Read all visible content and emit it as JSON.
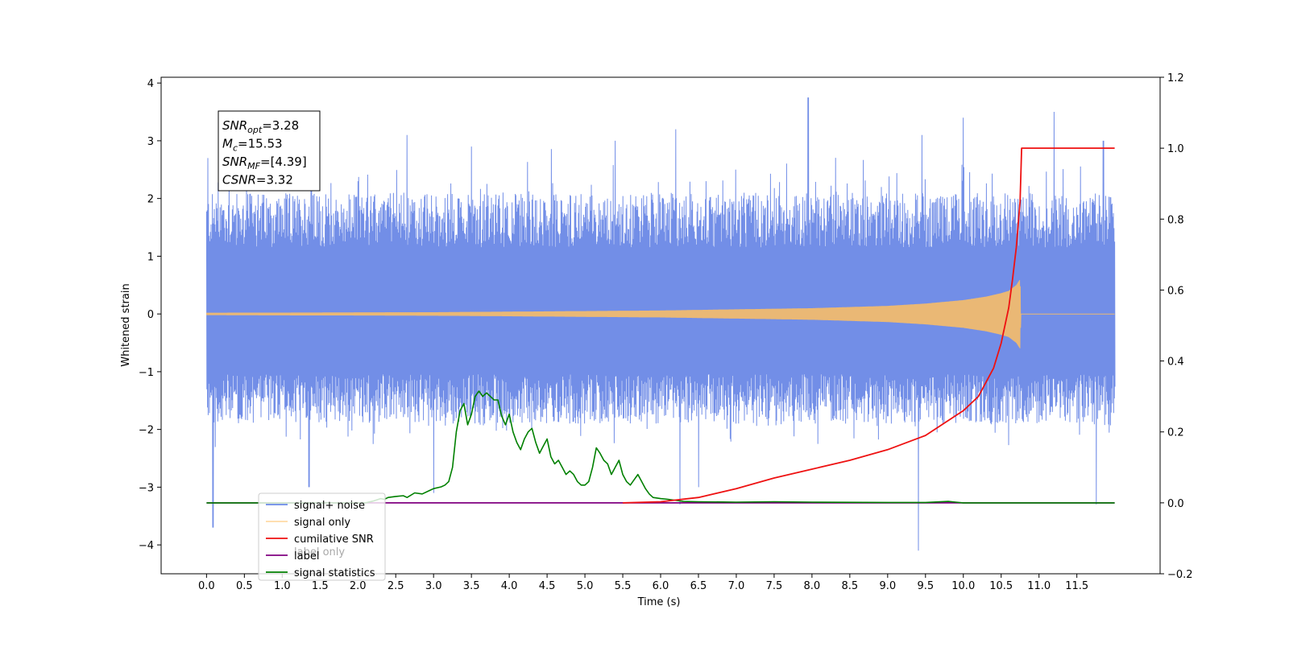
{
  "chart_data": {
    "type": "line",
    "xlabel": "Time (s)",
    "ylabel": "Whitened strain",
    "xlim": [
      -0.6,
      12.6
    ],
    "ylim": [
      -4.5,
      4.1
    ],
    "y2lim": [
      -0.2,
      1.2
    ],
    "x_ticks": [
      "0.0",
      "0.5",
      "1.0",
      "1.5",
      "2.0",
      "2.5",
      "3.0",
      "3.5",
      "4.0",
      "4.5",
      "5.0",
      "5.5",
      "6.0",
      "6.5",
      "7.0",
      "7.5",
      "8.0",
      "8.5",
      "9.0",
      "9.5",
      "10.0",
      "10.5",
      "11.0",
      "11.5"
    ],
    "y_ticks": [
      "4",
      "3",
      "2",
      "1",
      "0",
      "−1",
      "−2",
      "−3",
      "−4"
    ],
    "y2_ticks": [
      "1.2",
      "1.0",
      "0.8",
      "0.6",
      "0.4",
      "0.2",
      "0.0",
      "−0.2"
    ],
    "legend_position": "lower-left",
    "legend": [
      {
        "label": "signal+ noise",
        "color": "#6a88e6"
      },
      {
        "label": "signal only",
        "color": "#ffbf60"
      },
      {
        "label": "cumilative SNR",
        "color": "#ee1111"
      },
      {
        "label": "label",
        "color": "#800080"
      },
      {
        "label": "signal statistics",
        "color": "#008000"
      }
    ],
    "hidden_legend_text": "label only",
    "annotation": [
      {
        "main": "SNR",
        "sub": "opt",
        "rest": "=3.28"
      },
      {
        "main": "M",
        "sub": "c",
        "rest": "=15.53"
      },
      {
        "main": "SNR",
        "sub": "MF",
        "rest": "=[4.39]"
      },
      {
        "main": "CSNR",
        "sub": "",
        "rest": "=3.32"
      }
    ],
    "series": [
      {
        "name": "signal+ noise",
        "axis": "left",
        "color": "#6a88e6",
        "x_range": [
          0.0,
          12.0
        ],
        "band_lower": -1.9,
        "band_upper": 2.1,
        "spikes": [
          [
            0.02,
            2.7
          ],
          [
            0.08,
            -3.7
          ],
          [
            0.3,
            2.6
          ],
          [
            1.35,
            -3.0
          ],
          [
            2.65,
            3.1
          ],
          [
            3.0,
            -3.1
          ],
          [
            3.5,
            2.9
          ],
          [
            5.4,
            3.0
          ],
          [
            6.2,
            3.2
          ],
          [
            6.25,
            -3.3
          ],
          [
            6.5,
            -3.0
          ],
          [
            7.95,
            3.75
          ],
          [
            9.4,
            -4.1
          ],
          [
            9.45,
            3.1
          ],
          [
            10.0,
            3.4
          ],
          [
            11.2,
            3.5
          ],
          [
            11.75,
            -3.3
          ],
          [
            11.85,
            3.0
          ]
        ]
      },
      {
        "name": "signal only",
        "axis": "left",
        "color": "#ffbf60",
        "points": [
          [
            0,
            0.02
          ],
          [
            3.0,
            0.03
          ],
          [
            6.0,
            0.06
          ],
          [
            7.0,
            0.08
          ],
          [
            8.0,
            0.1
          ],
          [
            9.0,
            0.14
          ],
          [
            9.5,
            0.18
          ],
          [
            10.0,
            0.24
          ],
          [
            10.3,
            0.3
          ],
          [
            10.5,
            0.36
          ],
          [
            10.6,
            0.4
          ],
          [
            10.7,
            0.5
          ],
          [
            10.75,
            0.6
          ],
          [
            10.76,
            0.0
          ],
          [
            12.0,
            0.0
          ]
        ]
      },
      {
        "name": "cumilative SNR",
        "axis": "right",
        "color": "#ee1111",
        "points": [
          [
            5.5,
            0.0
          ],
          [
            6.0,
            0.003
          ],
          [
            6.5,
            0.015
          ],
          [
            7.0,
            0.04
          ],
          [
            7.5,
            0.07
          ],
          [
            8.0,
            0.095
          ],
          [
            8.5,
            0.12
          ],
          [
            9.0,
            0.15
          ],
          [
            9.5,
            0.19
          ],
          [
            10.0,
            0.26
          ],
          [
            10.2,
            0.3
          ],
          [
            10.4,
            0.38
          ],
          [
            10.5,
            0.45
          ],
          [
            10.6,
            0.55
          ],
          [
            10.65,
            0.63
          ],
          [
            10.7,
            0.72
          ],
          [
            10.75,
            0.85
          ],
          [
            10.77,
            1.0
          ],
          [
            12.0,
            1.0
          ]
        ]
      },
      {
        "name": "label",
        "axis": "right",
        "color": "#800080",
        "points": [
          [
            0.0,
            0.0
          ],
          [
            12.0,
            0.0
          ]
        ]
      },
      {
        "name": "signal statistics",
        "axis": "right",
        "color": "#008000",
        "points": [
          [
            0.0,
            0.0
          ],
          [
            2.0,
            0.0
          ],
          [
            2.1,
            0.0
          ],
          [
            2.2,
            0.005
          ],
          [
            2.3,
            0.012
          ],
          [
            2.35,
            0.01
          ],
          [
            2.4,
            0.015
          ],
          [
            2.5,
            0.018
          ],
          [
            2.6,
            0.02
          ],
          [
            2.65,
            0.015
          ],
          [
            2.75,
            0.028
          ],
          [
            2.85,
            0.025
          ],
          [
            2.95,
            0.035
          ],
          [
            3.0,
            0.04
          ],
          [
            3.1,
            0.045
          ],
          [
            3.15,
            0.05
          ],
          [
            3.2,
            0.06
          ],
          [
            3.25,
            0.1
          ],
          [
            3.3,
            0.2
          ],
          [
            3.35,
            0.26
          ],
          [
            3.4,
            0.28
          ],
          [
            3.45,
            0.22
          ],
          [
            3.5,
            0.25
          ],
          [
            3.55,
            0.3
          ],
          [
            3.6,
            0.315
          ],
          [
            3.65,
            0.3
          ],
          [
            3.7,
            0.31
          ],
          [
            3.75,
            0.3
          ],
          [
            3.8,
            0.29
          ],
          [
            3.85,
            0.29
          ],
          [
            3.9,
            0.245
          ],
          [
            3.95,
            0.22
          ],
          [
            4.0,
            0.25
          ],
          [
            4.05,
            0.2
          ],
          [
            4.1,
            0.17
          ],
          [
            4.15,
            0.15
          ],
          [
            4.2,
            0.18
          ],
          [
            4.25,
            0.2
          ],
          [
            4.3,
            0.21
          ],
          [
            4.35,
            0.17
          ],
          [
            4.4,
            0.14
          ],
          [
            4.45,
            0.16
          ],
          [
            4.5,
            0.18
          ],
          [
            4.55,
            0.13
          ],
          [
            4.6,
            0.11
          ],
          [
            4.65,
            0.12
          ],
          [
            4.7,
            0.1
          ],
          [
            4.75,
            0.08
          ],
          [
            4.8,
            0.09
          ],
          [
            4.85,
            0.08
          ],
          [
            4.9,
            0.06
          ],
          [
            4.95,
            0.05
          ],
          [
            5.0,
            0.05
          ],
          [
            5.05,
            0.06
          ],
          [
            5.1,
            0.1
          ],
          [
            5.15,
            0.155
          ],
          [
            5.2,
            0.14
          ],
          [
            5.25,
            0.12
          ],
          [
            5.3,
            0.11
          ],
          [
            5.35,
            0.08
          ],
          [
            5.4,
            0.1
          ],
          [
            5.45,
            0.12
          ],
          [
            5.5,
            0.08
          ],
          [
            5.55,
            0.06
          ],
          [
            5.6,
            0.05
          ],
          [
            5.65,
            0.065
          ],
          [
            5.7,
            0.08
          ],
          [
            5.75,
            0.06
          ],
          [
            5.8,
            0.04
          ],
          [
            5.85,
            0.025
          ],
          [
            5.9,
            0.015
          ],
          [
            6.0,
            0.012
          ],
          [
            6.1,
            0.01
          ],
          [
            6.3,
            0.004
          ],
          [
            6.5,
            0.003
          ],
          [
            7.0,
            0.002
          ],
          [
            7.5,
            0.003
          ],
          [
            8.0,
            0.002
          ],
          [
            9.0,
            0.001
          ],
          [
            9.5,
            0.001
          ],
          [
            9.8,
            0.004
          ],
          [
            9.9,
            0.002
          ],
          [
            10.0,
            0.0
          ],
          [
            12.0,
            0.0
          ]
        ]
      }
    ]
  }
}
